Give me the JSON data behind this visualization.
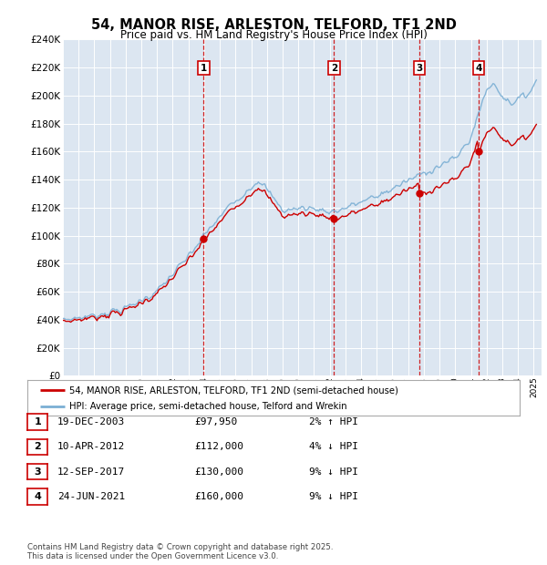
{
  "title": "54, MANOR RISE, ARLESTON, TELFORD, TF1 2ND",
  "subtitle": "Price paid vs. HM Land Registry's House Price Index (HPI)",
  "legend_line1": "54, MANOR RISE, ARLESTON, TELFORD, TF1 2ND (semi-detached house)",
  "legend_line2": "HPI: Average price, semi-detached house, Telford and Wrekin",
  "footer": "Contains HM Land Registry data © Crown copyright and database right 2025.\nThis data is licensed under the Open Government Licence v3.0.",
  "transactions": [
    {
      "num": 1,
      "date": "19-DEC-2003",
      "price": "£97,950",
      "pct": "2%",
      "dir": "↑"
    },
    {
      "num": 2,
      "date": "10-APR-2012",
      "price": "£112,000",
      "pct": "4%",
      "dir": "↓"
    },
    {
      "num": 3,
      "date": "12-SEP-2017",
      "price": "£130,000",
      "pct": "9%",
      "dir": "↓"
    },
    {
      "num": 4,
      "date": "24-JUN-2021",
      "price": "£160,000",
      "pct": "9%",
      "dir": "↓"
    }
  ],
  "transaction_years": [
    2003.97,
    2012.28,
    2017.71,
    2021.48
  ],
  "transaction_prices": [
    97950,
    112000,
    130000,
    160000
  ],
  "sale_line_color": "#cc0000",
  "hpi_line_color": "#7bafd4",
  "vline_color": "#cc0000",
  "plot_bg_color": "#dce6f1",
  "ylim": [
    0,
    240000
  ],
  "yticks": [
    0,
    20000,
    40000,
    60000,
    80000,
    100000,
    120000,
    140000,
    160000,
    180000,
    200000,
    220000,
    240000
  ],
  "xlim_start": 1995,
  "xlim_end": 2025.5
}
